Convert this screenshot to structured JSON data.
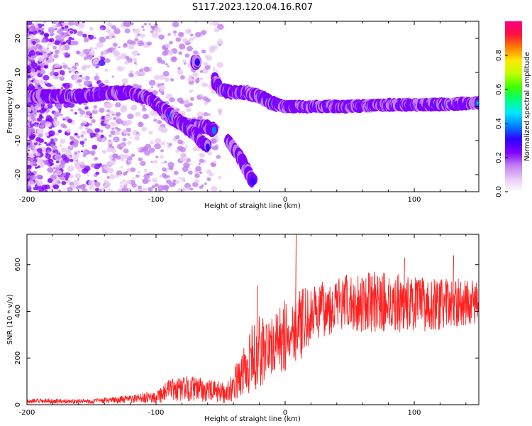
{
  "title": "S117.2023.120.04.16.R07",
  "chart_data": [
    {
      "type": "heatmap",
      "name": "spectrogram",
      "xlabel": "Height of straight line (km)",
      "ylabel": "Frequency (Hz)",
      "xlim": [
        -200,
        150
      ],
      "ylim": [
        -25,
        25
      ],
      "xticks": [
        -200,
        -100,
        0,
        100
      ],
      "yticks": [
        -20,
        -10,
        0,
        10,
        20
      ],
      "colorbar": {
        "label": "Normalized spectral amplitude",
        "range": [
          0,
          1
        ],
        "ticks": [
          0.0,
          0.2,
          0.4,
          0.6,
          0.8
        ],
        "colors": [
          "#ffffff",
          "#e8c8f4",
          "#c080f0",
          "#8000ff",
          "#3000ff",
          "#0080ff",
          "#00e8ff",
          "#00ff80",
          "#40ff00",
          "#c0ff00",
          "#ffe800",
          "#ff8000",
          "#ff1040",
          "#ff0080"
        ]
      },
      "ridges": [
        {
          "name": "main-branch",
          "x": [
            -200,
            -160,
            -140,
            -120,
            -110,
            -100,
            -90,
            -80,
            -70,
            -60,
            -55
          ],
          "y": [
            3,
            3,
            4,
            4,
            3,
            1,
            -3,
            -5,
            -6,
            -6,
            -7
          ]
        },
        {
          "name": "descending-branch",
          "x": [
            -100,
            -90,
            -80,
            -70,
            -65,
            -60
          ],
          "y": [
            1,
            -2,
            -5,
            -8,
            -10,
            -12
          ]
        },
        {
          "name": "left-descending-branch",
          "x": [
            -45,
            -40,
            -35,
            -30,
            -25
          ],
          "y": [
            -10,
            -12,
            -15,
            -18,
            -22
          ]
        },
        {
          "name": "upper-blob",
          "x": [
            -70,
            -68
          ],
          "y": [
            13,
            13
          ]
        },
        {
          "name": "right-branch",
          "x": [
            -55,
            -50,
            -40,
            -30,
            -20,
            -10,
            0,
            20,
            50,
            80,
            110,
            150
          ],
          "y": [
            8,
            5,
            4,
            4,
            3,
            1,
            0,
            0,
            0,
            0.5,
            0.5,
            1
          ]
        }
      ]
    },
    {
      "type": "line",
      "name": "snr",
      "xlabel": "Height of straight line (km)",
      "ylabel": "SNR (10 * v/v)",
      "xlim": [
        -200,
        150
      ],
      "ylim": [
        0,
        730
      ],
      "xticks": [
        -200,
        -100,
        0,
        100
      ],
      "yticks": [
        0,
        200,
        400,
        600
      ],
      "color": "#ff2020",
      "envelope": {
        "x": [
          -200,
          -150,
          -130,
          -115,
          -100,
          -90,
          -75,
          -60,
          -45,
          -35,
          -25,
          -18,
          -10,
          -5,
          0,
          5,
          10,
          15,
          20,
          30,
          40,
          60,
          80,
          100,
          120,
          140,
          150
        ],
        "base": [
          15,
          15,
          20,
          25,
          35,
          60,
          70,
          60,
          50,
          120,
          200,
          230,
          250,
          270,
          290,
          320,
          340,
          350,
          380,
          410,
          430,
          440,
          440,
          430,
          430,
          440,
          440
        ],
        "amp": [
          10,
          10,
          15,
          20,
          30,
          50,
          55,
          50,
          45,
          90,
          150,
          180,
          120,
          150,
          160,
          140,
          150,
          150,
          120,
          120,
          120,
          130,
          130,
          120,
          110,
          100,
          90
        ]
      },
      "spikes": [
        {
          "x": 8,
          "y": 730
        },
        {
          "x": -22,
          "y": 510
        },
        {
          "x": 130,
          "y": 640
        },
        {
          "x": 92,
          "y": 630
        }
      ]
    }
  ]
}
